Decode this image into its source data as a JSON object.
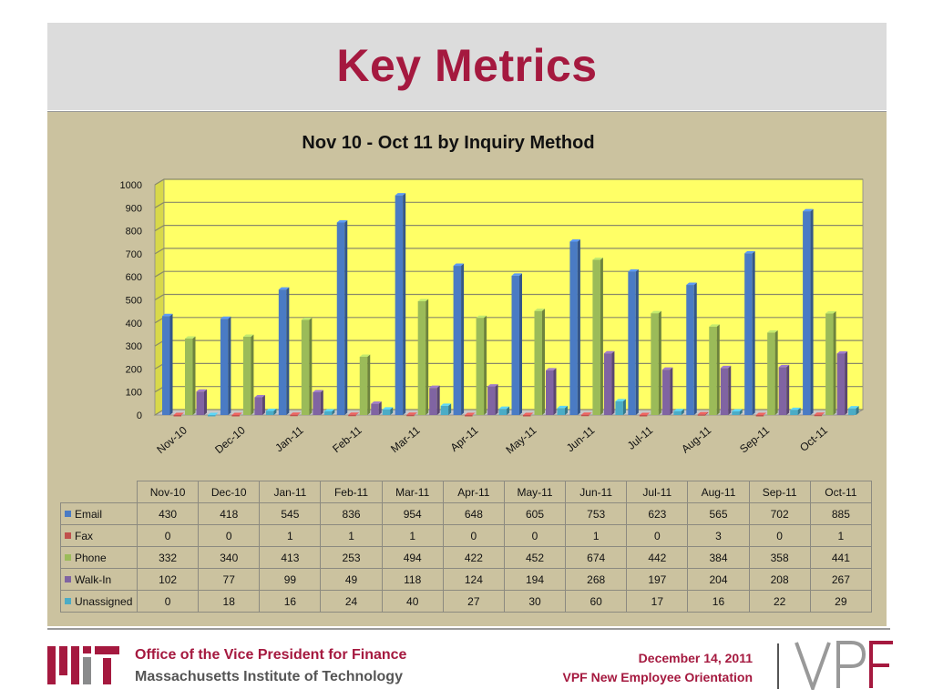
{
  "slide": {
    "title": "Key Metrics"
  },
  "chart_data": {
    "type": "bar",
    "title": "Nov 10 - Oct 11 by Inquiry Method",
    "categories": [
      "Nov-10",
      "Dec-10",
      "Jan-11",
      "Feb-11",
      "Mar-11",
      "Apr-11",
      "May-11",
      "Jun-11",
      "Jul-11",
      "Aug-11",
      "Sep-11",
      "Oct-11"
    ],
    "series": [
      {
        "name": "Email",
        "color": "#4a7bc4",
        "values": [
          430,
          418,
          545,
          836,
          954,
          648,
          605,
          753,
          623,
          565,
          702,
          885
        ]
      },
      {
        "name": "Fax",
        "color": "#c0504d",
        "values": [
          0,
          0,
          1,
          1,
          1,
          0,
          0,
          1,
          0,
          3,
          0,
          1
        ]
      },
      {
        "name": "Phone",
        "color": "#9bbb59",
        "values": [
          332,
          340,
          413,
          253,
          494,
          422,
          452,
          674,
          442,
          384,
          358,
          441
        ]
      },
      {
        "name": "Walk-In",
        "color": "#8064a2",
        "values": [
          102,
          77,
          99,
          49,
          118,
          124,
          194,
          268,
          197,
          204,
          208,
          267
        ]
      },
      {
        "name": "Unassigned",
        "color": "#4bacc6",
        "values": [
          0,
          18,
          16,
          24,
          40,
          27,
          30,
          60,
          17,
          16,
          22,
          29
        ]
      }
    ],
    "ylim": [
      0,
      1000
    ],
    "yticks": [
      0,
      100,
      200,
      300,
      400,
      500,
      600,
      700,
      800,
      900,
      1000
    ],
    "grid": true,
    "legend": "data table below chart",
    "plot_background": "#ffff66"
  },
  "footer": {
    "org": "Office of the Vice President for Finance",
    "institution": "Massachusetts Institute of Technology",
    "date": "December 14, 2011",
    "event": "VPF New Employee Orientation",
    "brand_color": "#a5193f"
  }
}
